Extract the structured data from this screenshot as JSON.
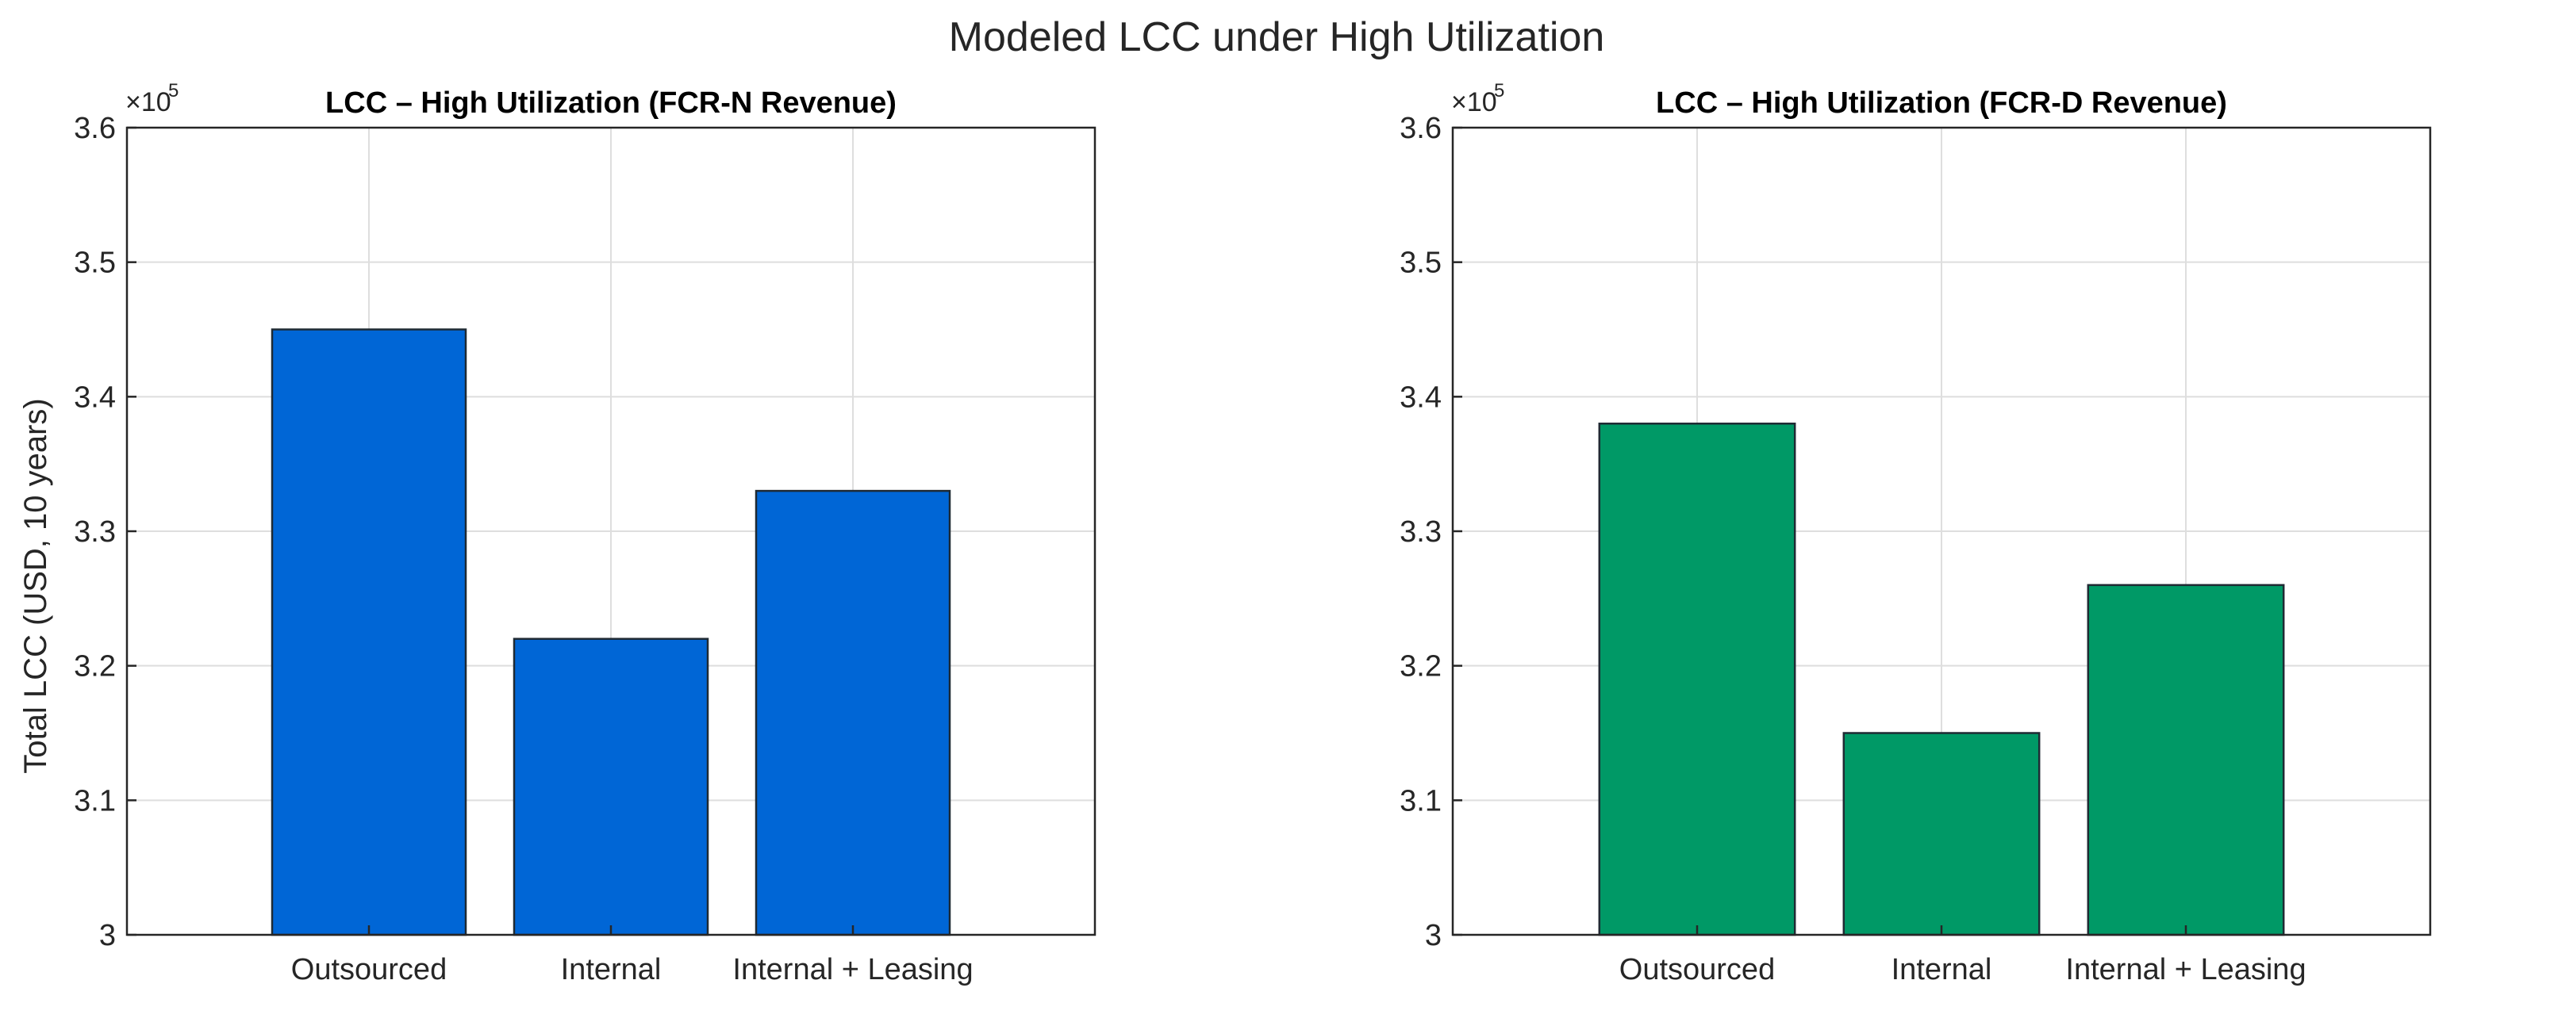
{
  "figure_title": "Modeled LCC under High Utilization",
  "chart_data": [
    {
      "type": "bar",
      "title": "LCC – High Utilization (FCR-N Revenue)",
      "categories": [
        "Outsourced",
        "Internal",
        "Internal + Leasing"
      ],
      "values": [
        345000,
        322000,
        333000
      ],
      "ylabel": "Total LCC (USD, 10 years)",
      "xlabel": "",
      "ylim": [
        300000,
        360000
      ],
      "yticks": [
        3,
        3.1,
        3.2,
        3.3,
        3.4,
        3.5,
        3.6
      ],
      "ytick_labels": [
        "3",
        "3.1",
        "3.2",
        "3.3",
        "3.4",
        "3.5",
        "3.6"
      ],
      "yscale_base": "×10",
      "yscale_exponent": "5",
      "bar_color": "#0066d6",
      "grid": true
    },
    {
      "type": "bar",
      "title": "LCC – High Utilization (FCR-D Revenue)",
      "categories": [
        "Outsourced",
        "Internal",
        "Internal + Leasing"
      ],
      "values": [
        338000,
        315000,
        326000
      ],
      "ylabel": "",
      "xlabel": "",
      "ylim": [
        300000,
        360000
      ],
      "yticks": [
        3,
        3.1,
        3.2,
        3.3,
        3.4,
        3.5,
        3.6
      ],
      "ytick_labels": [
        "3",
        "3.1",
        "3.2",
        "3.3",
        "3.4",
        "3.5",
        "3.6"
      ],
      "yscale_base": "×10",
      "yscale_exponent": "5",
      "bar_color": "#009966",
      "grid": true
    }
  ]
}
